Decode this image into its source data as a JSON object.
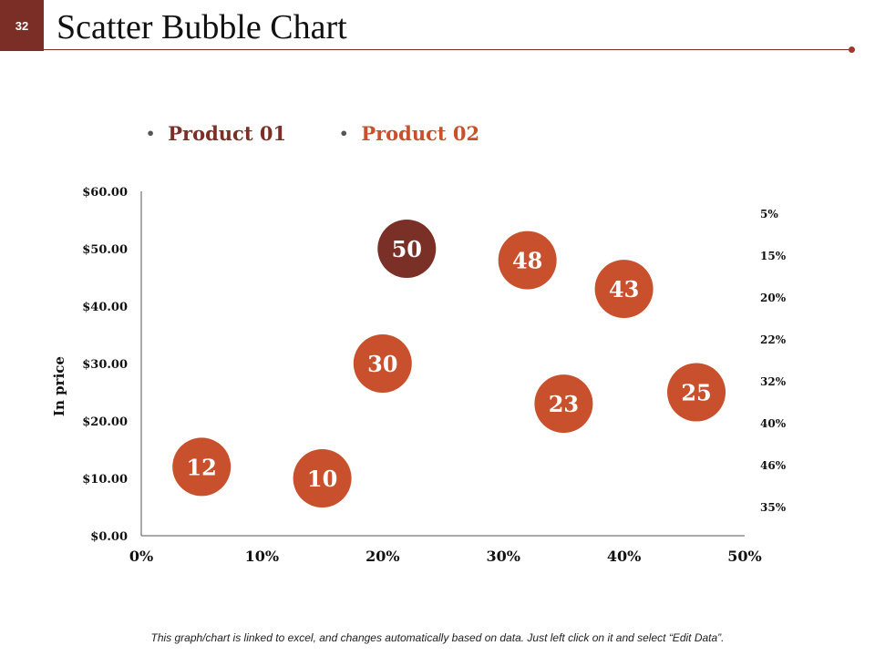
{
  "slide": {
    "number": "32",
    "title": "Scatter Bubble Chart"
  },
  "colors": {
    "product01": "#7a3027",
    "product02": "#c8502c",
    "bubble_text": "#ffffff",
    "axis": "#555555",
    "accent": "#7b2e26"
  },
  "footer": {
    "note": "This graph/chart is linked to excel, and changes automatically based on data. Just left click on it and select “Edit Data”."
  },
  "chart_data": {
    "type": "scatter",
    "title": "",
    "xlabel": "",
    "ylabel": "In price",
    "xlim": [
      0,
      50
    ],
    "ylim": [
      0,
      60
    ],
    "x_ticks": [
      "0%",
      "10%",
      "20%",
      "30%",
      "40%",
      "50%"
    ],
    "y_ticks": [
      "$0.00",
      "$10.00",
      "$20.00",
      "$30.00",
      "$40.00",
      "$50.00",
      "$60.00"
    ],
    "right_labels": [
      "5%",
      "15%",
      "20%",
      "22%",
      "32%",
      "40%",
      "46%",
      "35%"
    ],
    "grid": false,
    "legend_position": "top-left",
    "series": [
      {
        "name": "Product 01",
        "color": "#7a3027",
        "points": [
          {
            "x": 22,
            "y": 50,
            "label": "50"
          }
        ]
      },
      {
        "name": "Product 02",
        "color": "#c8502c",
        "points": [
          {
            "x": 5,
            "y": 12,
            "label": "12"
          },
          {
            "x": 15,
            "y": 10,
            "label": "10"
          },
          {
            "x": 20,
            "y": 30,
            "label": "30"
          },
          {
            "x": 32,
            "y": 48,
            "label": "48"
          },
          {
            "x": 35,
            "y": 23,
            "label": "23"
          },
          {
            "x": 40,
            "y": 43,
            "label": "43"
          },
          {
            "x": 46,
            "y": 25,
            "label": "25"
          }
        ]
      }
    ]
  }
}
